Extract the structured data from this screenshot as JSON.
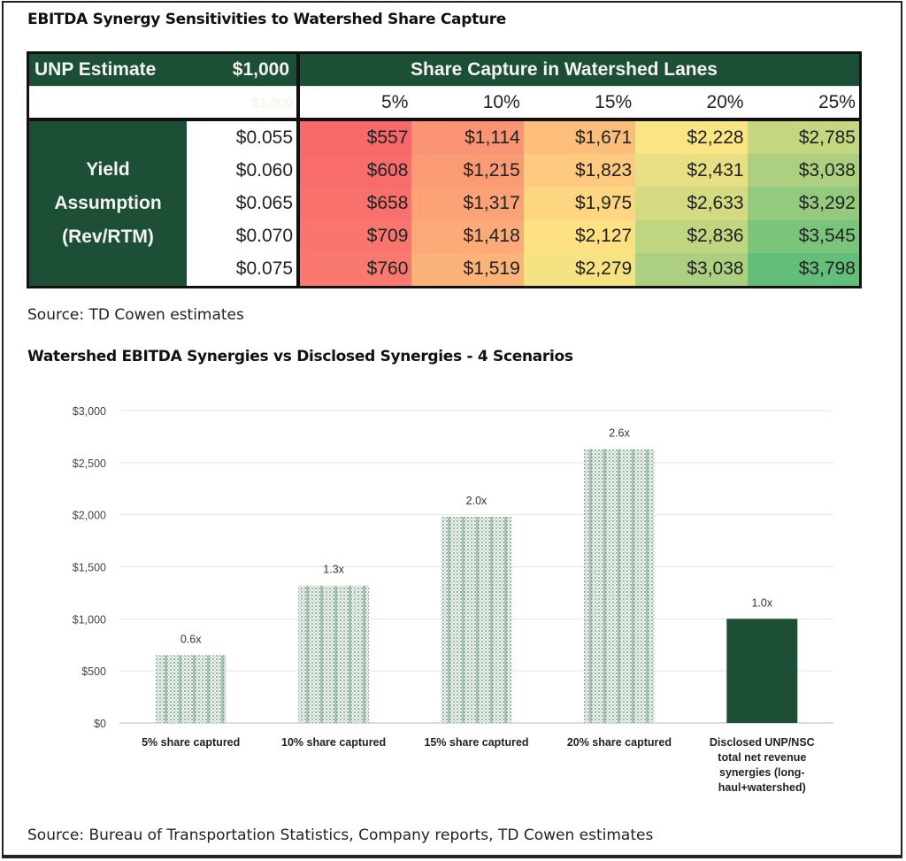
{
  "table_section": {
    "title": "EBITDA Synergy Sensitivities to Watershed Share Capture",
    "estimate_label": "UNP Estimate",
    "estimate_value": "$1,000",
    "faint_value": "$1,000",
    "share_header": "Share Capture in Watershed Lanes",
    "row_header": [
      "Yield",
      "Assumption",
      "(Rev/RTM)"
    ],
    "columns": [
      "5%",
      "10%",
      "15%",
      "20%",
      "25%"
    ],
    "rows": [
      {
        "yield": "$0.055",
        "values": [
          "$557",
          "$1,114",
          "$1,671",
          "$2,228",
          "$2,785"
        ]
      },
      {
        "yield": "$0.060",
        "values": [
          "$608",
          "$1,215",
          "$1,823",
          "$2,431",
          "$3,038"
        ]
      },
      {
        "yield": "$0.065",
        "values": [
          "$658",
          "$1,317",
          "$1,975",
          "$2,633",
          "$3,292"
        ]
      },
      {
        "yield": "$0.070",
        "values": [
          "$709",
          "$1,418",
          "$2,127",
          "$2,836",
          "$3,545"
        ]
      },
      {
        "yield": "$0.075",
        "values": [
          "$760",
          "$1,519",
          "$2,279",
          "$3,038",
          "$3,798"
        ]
      }
    ],
    "heat_colors": {
      "low": "#f8696b",
      "mid": "#ffe584",
      "high": "#63be7b"
    },
    "header_color": "#1c4f36",
    "source": "Source: TD Cowen estimates"
  },
  "chart_data": {
    "type": "bar",
    "title": "Watershed EBITDA Synergies vs Disclosed Synergies - 4 Scenarios",
    "categories": [
      [
        "5% share captured"
      ],
      [
        "10% share captured"
      ],
      [
        "15% share captured"
      ],
      [
        "20% share captured"
      ],
      [
        "Disclosed UNP/NSC",
        "total net revenue",
        "synergies (long-",
        "haul+watershed)"
      ]
    ],
    "values": [
      650,
      1320,
      1980,
      2630,
      1000
    ],
    "data_labels": [
      "0.6x",
      "1.3x",
      "2.0x",
      "2.6x",
      "1.0x"
    ],
    "fill_styles": [
      "pattern",
      "pattern",
      "pattern",
      "pattern",
      "solid"
    ],
    "bar_color": "#1c4f36",
    "ylim": [
      0,
      3000
    ],
    "yticks": [
      0,
      500,
      1000,
      1500,
      2000,
      2500,
      3000
    ],
    "ytick_labels": [
      "$0",
      "$500",
      "$1,000",
      "$1,500",
      "$2,000",
      "$2,500",
      "$3,000"
    ],
    "xlabel": "",
    "ylabel": "",
    "grid": true,
    "legend": "none"
  },
  "chart_source": "Source: Bureau of Transportation Statistics, Company reports, TD Cowen estimates"
}
